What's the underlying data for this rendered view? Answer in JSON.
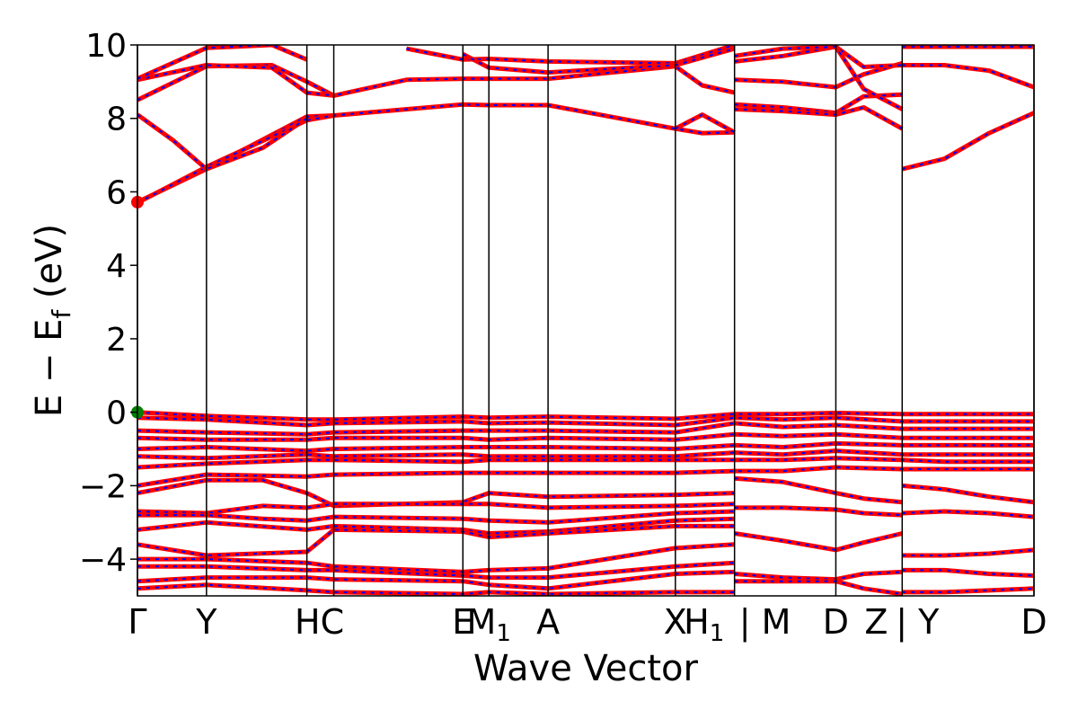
{
  "chart_data": {
    "type": "line",
    "xlabel": "Wave Vector",
    "ylabel_main": "E − E",
    "ylabel_sub": "f",
    "ylabel_unit": " (eV)",
    "ylim": [
      -5,
      10
    ],
    "yticks": [
      -4,
      -2,
      0,
      2,
      4,
      6,
      8,
      10
    ],
    "ytick_labels": [
      "−4",
      "−2",
      "0",
      "2",
      "4",
      "6",
      "8",
      "10"
    ],
    "kpath_labels": [
      {
        "text": "Γ",
        "sub": "",
        "x": 0.0
      },
      {
        "text": "Y",
        "sub": "",
        "x": 0.077
      },
      {
        "text": "HC",
        "sub": "",
        "x": 0.203
      },
      {
        "text": "E",
        "sub": "",
        "x": 0.363
      },
      {
        "text": "M",
        "sub": "1",
        "x": 0.392
      },
      {
        "text": "A",
        "sub": "",
        "x": 0.458
      },
      {
        "text": "X",
        "sub": "",
        "x": 0.6
      },
      {
        "text": "H",
        "sub": "1",
        "x": 0.632
      },
      {
        "text": "| M",
        "sub": "",
        "x": 0.7
      },
      {
        "text": "D",
        "sub": "",
        "x": 0.779
      },
      {
        "text": "Z",
        "sub": "",
        "x": 0.824
      },
      {
        "text": "| Y",
        "sub": "",
        "x": 0.87
      },
      {
        "text": "D",
        "sub": "",
        "x": 1.0
      }
    ],
    "kpath_vlines": [
      0.0,
      0.077,
      0.189,
      0.219,
      0.363,
      0.392,
      0.458,
      0.6,
      0.666,
      0.779,
      0.853,
      1.0
    ],
    "colors": {
      "band_primary": "#ff0000",
      "band_secondary": "#0000ff",
      "vbm_marker": "#008000",
      "cbm_marker": "#ff0000",
      "frame": "#000000"
    },
    "markers": [
      {
        "name": "vbm",
        "x": 0.0,
        "y": 0.0,
        "color": "#008000"
      },
      {
        "name": "cbm",
        "x": 0.0,
        "y": 5.72,
        "color": "#ff0000"
      }
    ],
    "series": [
      {
        "x": [
          0.0,
          0.077,
          0.189,
          0.219,
          0.363,
          0.392,
          0.458,
          0.6,
          0.63,
          0.666
        ],
        "y": [
          5.72,
          6.62,
          8.05,
          8.08,
          8.38,
          8.36,
          8.36,
          7.72,
          7.6,
          7.62
        ]
      },
      {
        "x": [
          0.0,
          0.077,
          0.189,
          0.219
        ],
        "y": [
          5.7,
          6.68,
          7.95,
          8.08
        ]
      },
      {
        "x": [
          0.0,
          0.04,
          0.077,
          0.14,
          0.189
        ],
        "y": [
          8.1,
          7.4,
          6.62,
          7.2,
          8.0
        ]
      },
      {
        "x": [
          0.0,
          0.077,
          0.15,
          0.189,
          0.219,
          0.3,
          0.363,
          0.392,
          0.458,
          0.6,
          0.63,
          0.666
        ],
        "y": [
          8.5,
          9.42,
          9.45,
          9.0,
          8.62,
          9.05,
          9.08,
          9.08,
          9.08,
          9.42,
          8.9,
          8.7
        ]
      },
      {
        "x": [
          0.0,
          0.077,
          0.15,
          0.189,
          0.219
        ],
        "y": [
          9.05,
          9.45,
          9.38,
          8.7,
          8.62
        ]
      },
      {
        "x": [
          0.0,
          0.077,
          0.15,
          0.189
        ],
        "y": [
          9.08,
          9.92,
          10.0,
          9.6
        ]
      },
      {
        "x": [
          0.3,
          0.363,
          0.392,
          0.458,
          0.6,
          0.666
        ],
        "y": [
          9.9,
          9.6,
          9.62,
          9.55,
          9.5,
          10.0
        ]
      },
      {
        "x": [
          0.363,
          0.392,
          0.458,
          0.6,
          0.666
        ],
        "y": [
          9.75,
          9.38,
          9.25,
          9.45,
          9.9
        ]
      },
      {
        "x": [
          0.6,
          0.63,
          0.666
        ],
        "y": [
          7.72,
          8.1,
          7.62
        ]
      },
      {
        "x": [
          0.666,
          0.72,
          0.779,
          0.81,
          0.853
        ],
        "y": [
          8.38,
          8.3,
          8.15,
          8.6,
          8.65
        ]
      },
      {
        "x": [
          0.666,
          0.72,
          0.779,
          0.81,
          0.853
        ],
        "y": [
          8.25,
          8.2,
          8.1,
          8.3,
          7.72
        ]
      },
      {
        "x": [
          0.666,
          0.72,
          0.779,
          0.81,
          0.853
        ],
        "y": [
          9.05,
          9.0,
          8.85,
          9.2,
          9.5
        ]
      },
      {
        "x": [
          0.666,
          0.72,
          0.779,
          0.81,
          0.853
        ],
        "y": [
          9.55,
          9.7,
          9.95,
          9.4,
          9.45
        ]
      },
      {
        "x": [
          0.666,
          0.72,
          0.779,
          0.81,
          0.853
        ],
        "y": [
          9.7,
          9.9,
          9.95,
          8.8,
          8.25
        ]
      },
      {
        "x": [
          0.853,
          0.9,
          0.95,
          1.0
        ],
        "y": [
          6.62,
          6.9,
          7.6,
          8.15
        ]
      },
      {
        "x": [
          0.853,
          0.9,
          0.95,
          1.0
        ],
        "y": [
          9.45,
          9.45,
          9.3,
          8.85
        ]
      },
      {
        "x": [
          0.853,
          1.0
        ],
        "y": [
          9.95,
          9.95
        ]
      },
      {
        "x": [
          0.0,
          0.077,
          0.189,
          0.219,
          0.363,
          0.392,
          0.458,
          0.6,
          0.666,
          0.72,
          0.779,
          0.853,
          0.9,
          1.0
        ],
        "y": [
          0.0,
          -0.1,
          -0.2,
          -0.2,
          -0.12,
          -0.15,
          -0.12,
          -0.18,
          -0.05,
          -0.05,
          -0.02,
          -0.05,
          -0.05,
          -0.05
        ]
      },
      {
        "x": [
          0.0,
          0.077,
          0.189,
          0.219,
          0.363,
          0.392,
          0.458,
          0.6,
          0.666,
          0.72,
          0.779,
          0.853,
          0.9,
          1.0
        ],
        "y": [
          -0.15,
          -0.2,
          -0.35,
          -0.3,
          -0.25,
          -0.3,
          -0.28,
          -0.35,
          -0.15,
          -0.2,
          -0.15,
          -0.25,
          -0.25,
          -0.25
        ]
      },
      {
        "x": [
          0.0,
          0.077,
          0.189,
          0.219,
          0.363,
          0.392,
          0.458,
          0.6,
          0.666,
          0.72,
          0.779,
          0.853,
          0.9,
          1.0
        ],
        "y": [
          -0.5,
          -0.55,
          -0.6,
          -0.55,
          -0.5,
          -0.5,
          -0.5,
          -0.55,
          -0.3,
          -0.4,
          -0.35,
          -0.45,
          -0.45,
          -0.45
        ]
      },
      {
        "x": [
          0.0,
          0.077,
          0.189,
          0.219,
          0.363,
          0.392,
          0.458,
          0.6,
          0.666,
          0.72,
          0.779,
          0.853,
          0.9,
          1.0
        ],
        "y": [
          -0.7,
          -0.75,
          -0.75,
          -0.7,
          -0.7,
          -0.75,
          -0.7,
          -0.75,
          -0.6,
          -0.65,
          -0.6,
          -0.7,
          -0.7,
          -0.7
        ]
      },
      {
        "x": [
          0.0,
          0.077,
          0.189,
          0.219,
          0.363,
          0.392,
          0.458,
          0.6,
          0.666,
          0.72,
          0.779,
          0.853,
          0.9,
          1.0
        ],
        "y": [
          -1.0,
          -0.95,
          -1.05,
          -1.0,
          -0.95,
          -0.95,
          -0.95,
          -1.0,
          -0.9,
          -0.95,
          -0.85,
          -0.9,
          -0.9,
          -0.9
        ]
      },
      {
        "x": [
          0.0,
          0.077,
          0.189,
          0.219,
          0.363,
          0.392,
          0.458,
          0.6,
          0.666,
          0.72,
          0.779,
          0.853,
          0.9,
          1.0
        ],
        "y": [
          -1.2,
          -1.25,
          -1.15,
          -1.2,
          -1.15,
          -1.2,
          -1.2,
          -1.2,
          -1.1,
          -1.15,
          -1.05,
          -1.15,
          -1.15,
          -1.15
        ]
      },
      {
        "x": [
          0.0,
          0.077,
          0.189,
          0.219,
          0.363,
          0.392,
          0.458,
          0.6,
          0.666,
          0.72,
          0.779,
          0.853,
          0.9,
          1.0
        ],
        "y": [
          -1.5,
          -1.4,
          -1.3,
          -1.3,
          -1.35,
          -1.3,
          -1.3,
          -1.3,
          -1.3,
          -1.3,
          -1.25,
          -1.3,
          -1.35,
          -1.35
        ]
      },
      {
        "x": [
          0.0,
          0.077,
          0.189,
          0.219,
          0.363,
          0.392,
          0.458,
          0.6,
          0.666,
          0.72,
          0.779,
          0.853,
          0.9,
          1.0
        ],
        "y": [
          -2.0,
          -1.7,
          -1.75,
          -1.7,
          -1.65,
          -1.65,
          -1.65,
          -1.65,
          -1.6,
          -1.6,
          -1.5,
          -1.55,
          -1.55,
          -1.55
        ]
      },
      {
        "x": [
          0.0,
          0.077,
          0.14,
          0.189,
          0.219,
          0.363,
          0.392,
          0.458,
          0.6,
          0.666
        ],
        "y": [
          -2.2,
          -1.85,
          -1.85,
          -2.2,
          -2.55,
          -2.45,
          -2.2,
          -2.3,
          -2.25,
          -2.2
        ]
      },
      {
        "x": [
          0.0,
          0.077,
          0.14,
          0.189,
          0.219,
          0.363,
          0.392,
          0.458,
          0.6,
          0.666
        ],
        "y": [
          -2.7,
          -2.75,
          -2.55,
          -2.6,
          -2.5,
          -2.5,
          -2.5,
          -2.6,
          -2.55,
          -2.5
        ]
      },
      {
        "x": [
          0.0,
          0.077,
          0.14,
          0.189,
          0.219,
          0.363,
          0.392,
          0.458,
          0.6,
          0.666
        ],
        "y": [
          -2.8,
          -2.8,
          -2.9,
          -2.95,
          -2.85,
          -2.9,
          -2.95,
          -3.0,
          -2.75,
          -2.7
        ]
      },
      {
        "x": [
          0.0,
          0.077,
          0.189,
          0.219,
          0.363,
          0.392,
          0.458,
          0.6,
          0.666
        ],
        "y": [
          -3.2,
          -3.0,
          -3.2,
          -3.1,
          -3.2,
          -3.3,
          -3.25,
          -2.95,
          -2.9
        ]
      },
      {
        "x": [
          0.0,
          0.077,
          0.189,
          0.219,
          0.363,
          0.392,
          0.458,
          0.6,
          0.666
        ],
        "y": [
          -3.6,
          -3.9,
          -3.8,
          -3.2,
          -3.25,
          -3.4,
          -3.3,
          -3.1,
          -3.1
        ]
      },
      {
        "x": [
          0.0,
          0.077,
          0.189,
          0.219,
          0.363,
          0.392,
          0.458,
          0.6,
          0.666
        ],
        "y": [
          -4.0,
          -4.0,
          -4.1,
          -4.2,
          -4.35,
          -4.3,
          -4.25,
          -3.7,
          -3.6
        ]
      },
      {
        "x": [
          0.0,
          0.077,
          0.189,
          0.219,
          0.363,
          0.392,
          0.458,
          0.6,
          0.666
        ],
        "y": [
          -4.2,
          -4.2,
          -4.3,
          -4.3,
          -4.45,
          -4.5,
          -4.5,
          -4.2,
          -4.1
        ]
      },
      {
        "x": [
          0.0,
          0.077,
          0.189,
          0.219,
          0.363,
          0.392,
          0.458,
          0.6,
          0.666
        ],
        "y": [
          -4.6,
          -4.5,
          -4.5,
          -4.55,
          -4.6,
          -4.7,
          -4.8,
          -4.4,
          -4.35
        ]
      },
      {
        "x": [
          0.0,
          0.077,
          0.189,
          0.219,
          0.363,
          0.392,
          0.458,
          0.6,
          0.666
        ],
        "y": [
          -4.8,
          -4.7,
          -4.85,
          -4.9,
          -4.95,
          -4.9,
          -4.95,
          -4.9,
          -4.9
        ]
      },
      {
        "x": [
          0.666,
          0.72,
          0.779,
          0.81,
          0.853
        ],
        "y": [
          -1.8,
          -1.9,
          -2.2,
          -2.35,
          -2.45
        ]
      },
      {
        "x": [
          0.666,
          0.72,
          0.779,
          0.81,
          0.853
        ],
        "y": [
          -2.6,
          -2.6,
          -2.65,
          -2.75,
          -2.8
        ]
      },
      {
        "x": [
          0.666,
          0.72,
          0.779,
          0.81,
          0.853
        ],
        "y": [
          -3.3,
          -3.5,
          -3.75,
          -3.55,
          -3.3
        ]
      },
      {
        "x": [
          0.666,
          0.72,
          0.779,
          0.81,
          0.853
        ],
        "y": [
          -4.4,
          -4.5,
          -4.55,
          -4.4,
          -4.35
        ]
      },
      {
        "x": [
          0.666,
          0.72,
          0.779,
          0.81,
          0.853
        ],
        "y": [
          -4.6,
          -4.6,
          -4.6,
          -4.8,
          -4.95
        ]
      },
      {
        "x": [
          0.853,
          0.9,
          0.95,
          1.0
        ],
        "y": [
          -2.0,
          -2.1,
          -2.3,
          -2.45
        ]
      },
      {
        "x": [
          0.853,
          0.9,
          0.95,
          1.0
        ],
        "y": [
          -2.75,
          -2.7,
          -2.75,
          -2.85
        ]
      },
      {
        "x": [
          0.853,
          0.9,
          0.95,
          1.0
        ],
        "y": [
          -3.9,
          -3.9,
          -3.85,
          -3.75
        ]
      },
      {
        "x": [
          0.853,
          0.9,
          0.95,
          1.0
        ],
        "y": [
          -4.3,
          -4.3,
          -4.4,
          -4.45
        ]
      },
      {
        "x": [
          0.853,
          0.9,
          0.95,
          1.0
        ],
        "y": [
          -4.9,
          -4.9,
          -4.85,
          -4.8
        ]
      }
    ]
  }
}
